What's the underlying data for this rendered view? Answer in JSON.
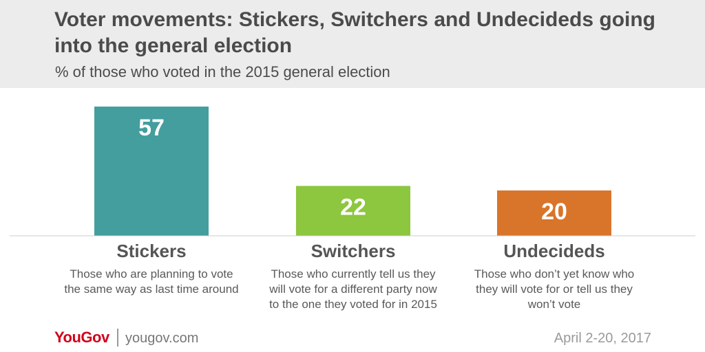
{
  "header": {
    "title": "Voter movements: Stickers, Switchers and Undecideds going into the general election",
    "subtitle": "% of those who voted in the 2015 general election"
  },
  "chart_data": {
    "type": "bar",
    "categories": [
      "Stickers",
      "Switchers",
      "Undecideds"
    ],
    "values": [
      57,
      22,
      20
    ],
    "descriptions": [
      "Those who are planning to vote the same way as last time around",
      "Those who currently tell us they will vote for a different party now to the one they voted for in 2015",
      "Those who don’t yet know who they will vote for or tell us they won’t vote"
    ],
    "colors": [
      "#449e9e",
      "#8dc63f",
      "#d9752b"
    ],
    "ylim": [
      0,
      57
    ],
    "grid": false
  },
  "footer": {
    "brand": "YouGov",
    "url": "yougov.com",
    "date": "April 2-20, 2017"
  }
}
